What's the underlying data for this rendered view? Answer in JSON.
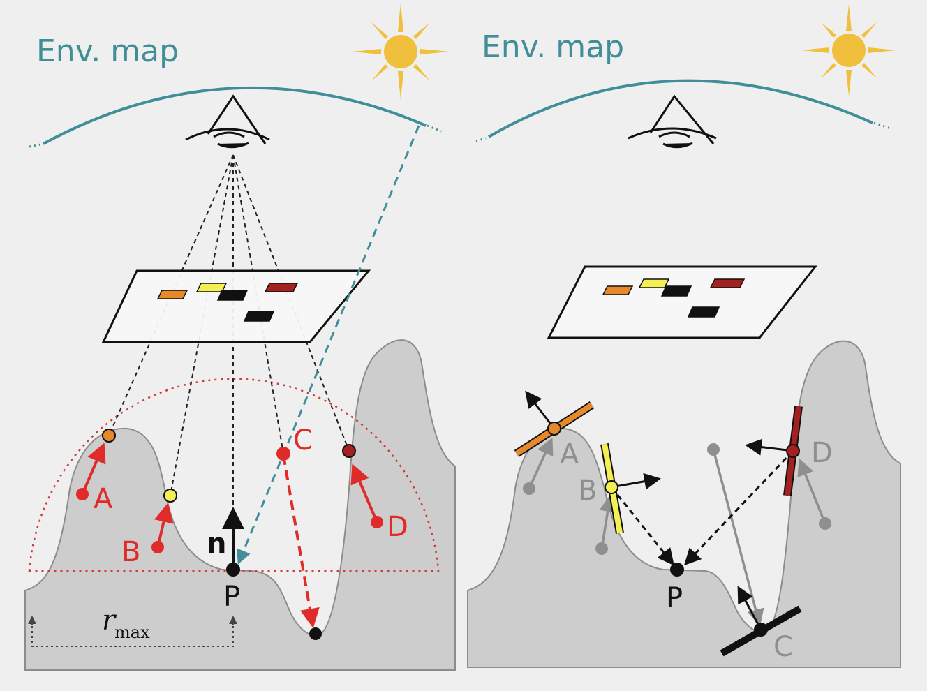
{
  "left_panel": {
    "env_label": "Env. map",
    "labels": {
      "a": "A",
      "b": "B",
      "c": "C",
      "d": "D",
      "p": "P",
      "n": "n"
    },
    "rmax": {
      "symbol": "r",
      "subscript": "max"
    }
  },
  "right_panel": {
    "env_label": "Env. map",
    "labels": {
      "a": "A",
      "b": "B",
      "c": "C",
      "d": "D",
      "p": "P"
    }
  },
  "colors": {
    "background": "#efefef",
    "terrain": "#cdcdcd",
    "env_map": "#3f8e98",
    "sun": "#f0bf3c",
    "red": "#e02b2b",
    "orange": "#e6892b",
    "yellow": "#f3ef55",
    "dark_red": "#a3211f",
    "gray_label": "#8f8f8f"
  },
  "icons": [
    "sun-icon",
    "eye-icon"
  ]
}
